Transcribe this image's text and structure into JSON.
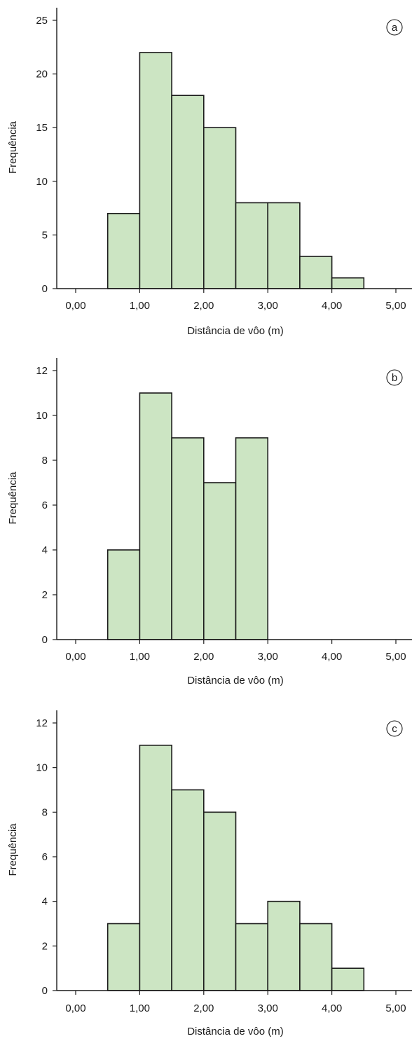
{
  "chart_data": [
    {
      "type": "bar",
      "panel_label": "a",
      "xlabel": "Distância de vôo (m)",
      "ylabel": "Frequência",
      "xlim": [
        0,
        5
      ],
      "ylim": [
        0,
        25
      ],
      "x_tick_values": [
        0,
        1,
        2,
        3,
        4,
        5
      ],
      "x_tick_labels": [
        "0,00",
        "1,00",
        "2,00",
        "3,00",
        "4,00",
        "5,00"
      ],
      "y_ticks": [
        0,
        5,
        10,
        15,
        20,
        25
      ],
      "bin_width": 0.5,
      "bins": [
        {
          "start": 0.5,
          "value": 7
        },
        {
          "start": 1.0,
          "value": 22
        },
        {
          "start": 1.5,
          "value": 18
        },
        {
          "start": 2.0,
          "value": 15
        },
        {
          "start": 2.5,
          "value": 8
        },
        {
          "start": 3.0,
          "value": 8
        },
        {
          "start": 3.5,
          "value": 3
        },
        {
          "start": 4.0,
          "value": 1
        }
      ]
    },
    {
      "type": "bar",
      "panel_label": "b",
      "xlabel": "Distância de vôo (m)",
      "ylabel": "Frequência",
      "xlim": [
        0,
        5
      ],
      "ylim": [
        0,
        12
      ],
      "x_tick_values": [
        0,
        1,
        2,
        3,
        4,
        5
      ],
      "x_tick_labels": [
        "0,00",
        "1,00",
        "2,00",
        "3,00",
        "4,00",
        "5,00"
      ],
      "y_ticks": [
        0,
        2,
        4,
        6,
        8,
        10,
        12
      ],
      "bin_width": 0.5,
      "bins": [
        {
          "start": 0.5,
          "value": 4
        },
        {
          "start": 1.0,
          "value": 11
        },
        {
          "start": 1.5,
          "value": 9
        },
        {
          "start": 2.0,
          "value": 7
        },
        {
          "start": 2.5,
          "value": 9
        }
      ]
    },
    {
      "type": "bar",
      "panel_label": "c",
      "xlabel": "Distância de vôo (m)",
      "ylabel": "Frequência",
      "xlim": [
        0,
        5
      ],
      "ylim": [
        0,
        12
      ],
      "x_tick_values": [
        0,
        1,
        2,
        3,
        4,
        5
      ],
      "x_tick_labels": [
        "0,00",
        "1,00",
        "2,00",
        "3,00",
        "4,00",
        "5,00"
      ],
      "y_ticks": [
        0,
        2,
        4,
        6,
        8,
        10,
        12
      ],
      "bin_width": 0.5,
      "bins": [
        {
          "start": 0.5,
          "value": 3
        },
        {
          "start": 1.0,
          "value": 11
        },
        {
          "start": 1.5,
          "value": 9
        },
        {
          "start": 2.0,
          "value": 8
        },
        {
          "start": 2.5,
          "value": 3
        },
        {
          "start": 3.0,
          "value": 4
        },
        {
          "start": 3.5,
          "value": 3
        },
        {
          "start": 4.0,
          "value": 1
        }
      ]
    }
  ],
  "colors": {
    "bar_fill": "#cce5c3",
    "bar_stroke": "#1a1a1a",
    "axis": "#1a1a1a",
    "text": "#1a1a1a"
  }
}
